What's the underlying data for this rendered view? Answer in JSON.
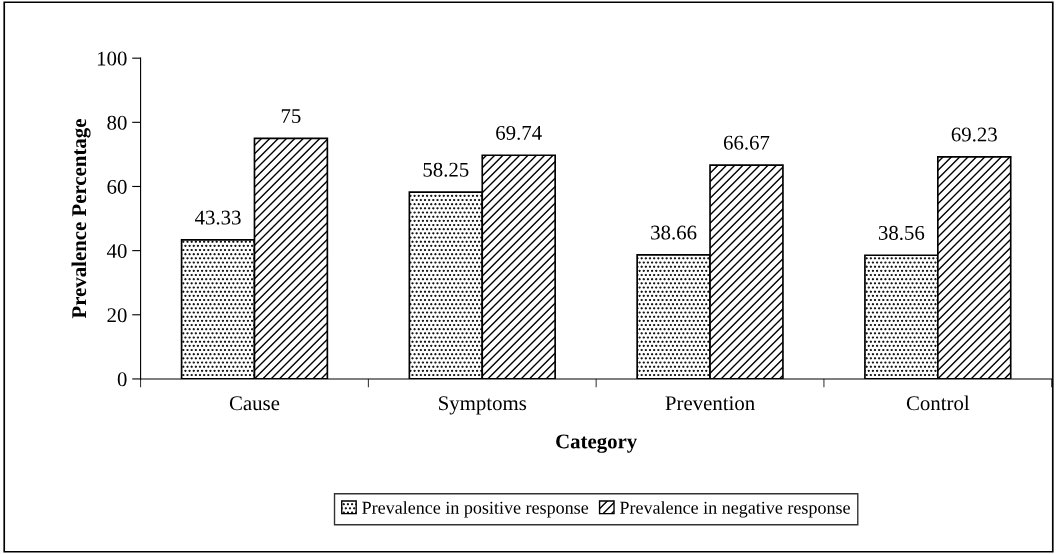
{
  "chart_data": {
    "type": "bar",
    "xlabel": "Category",
    "ylabel": "Prevalence Percentage",
    "categories": [
      "Cause",
      "Symptoms",
      "Prevention",
      "Control"
    ],
    "series": [
      {
        "name": "Prevalence in positive response",
        "color": "#000000",
        "values": [
          43.33,
          58.25,
          38.66,
          38.56
        ]
      },
      {
        "name": "Prevalence in negative response",
        "color": "#000000",
        "values": [
          75,
          69.74,
          66.67,
          69.23
        ]
      }
    ],
    "ylim": [
      0,
      100
    ],
    "yticks": [
      0,
      20,
      40,
      60,
      80,
      100
    ],
    "grid": false,
    "legend": "bottom",
    "data_labels": true
  }
}
